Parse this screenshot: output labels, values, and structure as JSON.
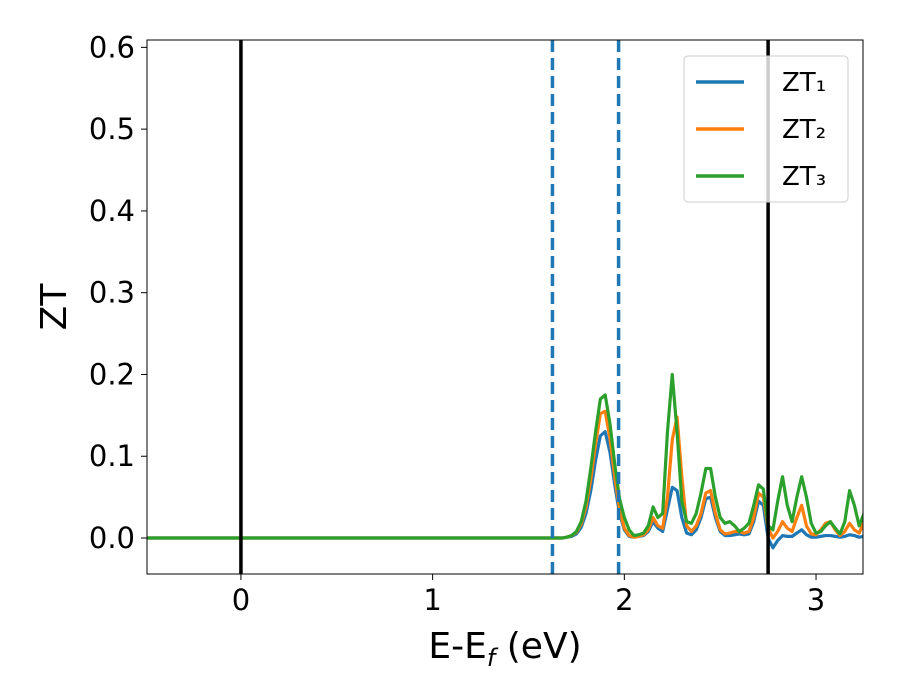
{
  "chart_data": {
    "type": "line",
    "xlabel": [
      "E-E",
      "f",
      " (eV)"
    ],
    "ylabel": "ZT",
    "xlim": [
      -0.49,
      3.245
    ],
    "ylim": [
      -0.044,
      0.609
    ],
    "xticks": [
      0,
      1,
      2,
      3
    ],
    "yticks": [
      {
        "value": 0,
        "label": "0.0"
      },
      0.1,
      0.2,
      0.3,
      0.4,
      0.5,
      0.6
    ],
    "legend": "upper right",
    "vlines": [
      {
        "x": 0,
        "color": "#000000",
        "style": "solid"
      },
      {
        "x": 1.625,
        "color": "#1f77b4",
        "style": "dashed"
      },
      {
        "x": 1.97,
        "color": "#1f77b4",
        "style": "dashed"
      },
      {
        "x": 2.75,
        "color": "#000000",
        "style": "solid"
      }
    ],
    "x": [
      -0.49,
      1.6,
      1.625,
      1.65,
      1.675,
      1.7,
      1.725,
      1.75,
      1.775,
      1.8,
      1.825,
      1.85,
      1.875,
      1.9,
      1.925,
      1.95,
      1.975,
      2.0,
      2.025,
      2.05,
      2.075,
      2.1,
      2.125,
      2.15,
      2.175,
      2.2,
      2.225,
      2.25,
      2.275,
      2.3,
      2.325,
      2.35,
      2.375,
      2.4,
      2.425,
      2.45,
      2.475,
      2.5,
      2.525,
      2.55,
      2.575,
      2.6,
      2.625,
      2.65,
      2.675,
      2.7,
      2.725,
      2.75,
      2.775,
      2.8,
      2.825,
      2.85,
      2.875,
      2.9,
      2.925,
      2.95,
      2.975,
      3.0,
      3.025,
      3.05,
      3.075,
      3.1,
      3.125,
      3.15,
      3.175,
      3.2,
      3.225,
      3.25
    ],
    "series": [
      {
        "name": "ZT₁",
        "color": "#1f77b4",
        "values": [
          0,
          0,
          0,
          0,
          0,
          0.001,
          0.002,
          0.005,
          0.013,
          0.03,
          0.058,
          0.095,
          0.125,
          0.13,
          0.105,
          0.065,
          0.03,
          0.01,
          0.002,
          0.001,
          0.002,
          0.003,
          0.008,
          0.02,
          0.012,
          0.008,
          0.035,
          0.062,
          0.058,
          0.025,
          0.006,
          0.004,
          0.01,
          0.025,
          0.048,
          0.05,
          0.025,
          0.008,
          0.003,
          0.003,
          0.004,
          0.005,
          0.004,
          0.005,
          0.02,
          0.045,
          0.04,
          0.0,
          -0.012,
          -0.003,
          0.003,
          0.002,
          0.002,
          0.006,
          0.01,
          0.004,
          0.001,
          0.001,
          0.002,
          0.003,
          0.003,
          0.002,
          0.001,
          0.002,
          0.004,
          0.003,
          0.001,
          0.002
        ]
      },
      {
        "name": "ZT₂",
        "color": "#ff7f0e",
        "values": [
          0,
          0,
          0,
          0,
          0,
          0.001,
          0.003,
          0.007,
          0.017,
          0.038,
          0.072,
          0.115,
          0.152,
          0.155,
          0.122,
          0.075,
          0.035,
          0.012,
          0.003,
          0.001,
          0.002,
          0.004,
          0.01,
          0.025,
          0.015,
          0.012,
          0.05,
          0.12,
          0.148,
          0.075,
          0.015,
          0.008,
          0.015,
          0.03,
          0.055,
          0.058,
          0.03,
          0.01,
          0.005,
          0.006,
          0.008,
          0.008,
          0.006,
          0.008,
          0.025,
          0.055,
          0.05,
          0.012,
          0.0,
          0.008,
          0.02,
          0.012,
          0.008,
          0.025,
          0.04,
          0.015,
          0.005,
          0.004,
          0.01,
          0.018,
          0.02,
          0.01,
          0.003,
          0.008,
          0.018,
          0.01,
          0.006,
          0.02
        ]
      },
      {
        "name": "ZT₃",
        "color": "#2ca02c",
        "values": [
          0,
          0,
          0,
          0,
          0,
          0.001,
          0.003,
          0.008,
          0.02,
          0.045,
          0.085,
          0.13,
          0.17,
          0.175,
          0.14,
          0.09,
          0.048,
          0.025,
          0.01,
          0.003,
          0.004,
          0.006,
          0.015,
          0.038,
          0.025,
          0.03,
          0.13,
          0.2,
          0.13,
          0.045,
          0.02,
          0.018,
          0.03,
          0.055,
          0.085,
          0.085,
          0.05,
          0.025,
          0.018,
          0.02,
          0.015,
          0.008,
          0.012,
          0.018,
          0.04,
          0.065,
          0.06,
          0.015,
          0.01,
          0.045,
          0.075,
          0.04,
          0.02,
          0.05,
          0.075,
          0.05,
          0.018,
          0.006,
          0.008,
          0.015,
          0.02,
          0.012,
          0.005,
          0.02,
          0.058,
          0.04,
          0.015,
          0.03
        ]
      }
    ]
  }
}
